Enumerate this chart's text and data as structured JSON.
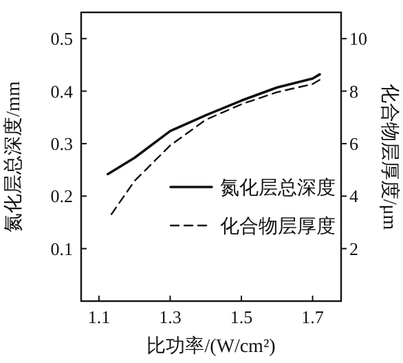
{
  "chart_data": {
    "type": "line",
    "xlabel": "比功率/(W/cm²)",
    "ylabel": "氮化层总深度/mm",
    "y2label": "化合物层厚度/μm",
    "xlim": [
      1.05,
      1.78
    ],
    "xticks": [
      1.1,
      1.3,
      1.5,
      1.7
    ],
    "ylim": [
      0,
      0.55
    ],
    "yticks": [
      0.1,
      0.2,
      0.3,
      0.4,
      {
        "value": 0.5,
        "label": "0.5"
      }
    ],
    "y2lim": [
      0,
      11
    ],
    "y2ticks": [
      2,
      4,
      6,
      8,
      10
    ],
    "legend": "bottom right",
    "grid": false,
    "series": [
      {
        "name": "氮化层总深度",
        "color": "#111111",
        "line_style": "solid",
        "x": [
          1.125,
          1.2,
          1.3,
          1.4,
          1.5,
          1.6,
          1.7,
          1.72
        ],
        "values": [
          0.242,
          0.273,
          0.324,
          0.354,
          0.382,
          0.407,
          0.424,
          0.432
        ]
      },
      {
        "name": "化合物层厚度",
        "color": "#111111",
        "line_style": "dashed",
        "axis": "y2",
        "x": [
          1.135,
          1.2,
          1.3,
          1.4,
          1.5,
          1.6,
          1.7,
          1.72
        ],
        "values": [
          3.31,
          4.58,
          5.93,
          6.91,
          7.5,
          7.96,
          8.27,
          8.43
        ]
      }
    ]
  }
}
